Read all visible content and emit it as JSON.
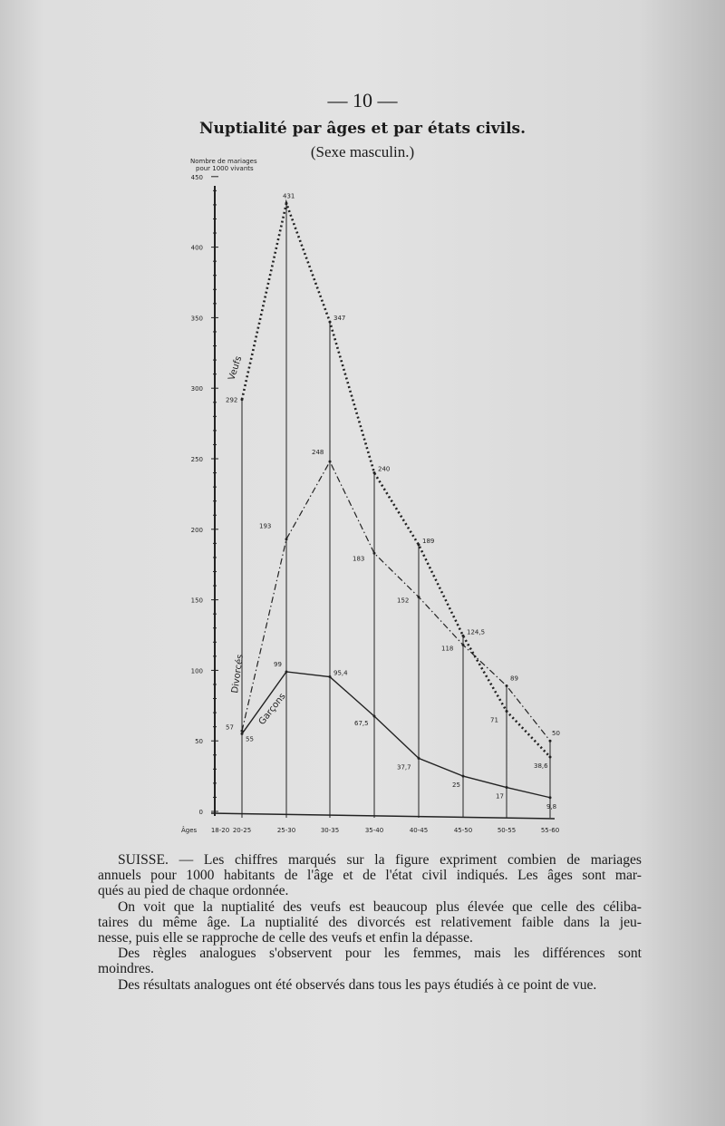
{
  "page_number": "— 10 —",
  "chart_data": {
    "type": "line",
    "title": "Nuptialité par âges et par états civils.",
    "subtitle": "(Sexe masculin.)",
    "ylabel": [
      "Nombre de mariages",
      "pour 1000 vivants"
    ],
    "xlabel": "Âges",
    "ylim": [
      0,
      450
    ],
    "yticks": [
      "0",
      "50",
      "100",
      "150",
      "200",
      "250",
      "300",
      "350",
      "400",
      "450"
    ],
    "categories": [
      "18-20",
      "20-25",
      "25-30",
      "30-35",
      "35-40",
      "40-45",
      "45-50",
      "50-55",
      "55-60"
    ],
    "grid": "vertical lines at each age group",
    "series": [
      {
        "name": "Veufs",
        "style": "dotted-plus / crosses",
        "values": [
          null,
          292,
          431,
          347,
          240,
          189,
          124.5,
          71,
          38.6
        ],
        "labels": [
          "",
          "292",
          "431",
          "347",
          "240",
          "189",
          "124,5",
          "71",
          "38,6"
        ]
      },
      {
        "name": "Divorcés",
        "style": "dash-dot",
        "values": [
          null,
          57,
          193,
          248,
          183,
          152,
          118,
          89,
          50
        ],
        "labels": [
          "",
          "57",
          "193",
          "248",
          "183",
          "152",
          "118",
          "89",
          "50"
        ]
      },
      {
        "name": "Garçons",
        "style": "solid",
        "values": [
          null,
          55,
          99,
          95.4,
          67.5,
          37.7,
          25,
          17,
          9.8
        ],
        "labels": [
          "",
          "55",
          "99",
          "95,4",
          "67,5",
          "37,7",
          "25",
          "17",
          "9,8"
        ]
      }
    ]
  },
  "caption": {
    "paragraphs": [
      [
        "SUISSE. — Les chiffres marqués sur la figure expriment combien de mariages",
        "annuels pour 1000 habitants de l'âge et de l'état civil indiqués. Les âges sont mar-",
        "qués au pied de chaque ordonnée."
      ],
      [
        "On voit que la nuptialité des veufs est beaucoup plus élevée que celle des céliba-",
        "taires du même âge. La nuptialité des divorcés est relativement faible dans la jeu-",
        "nesse, puis elle se rapproche de celle des veufs et enfin la dépasse."
      ],
      [
        "Des règles analogues s'observent pour les femmes, mais les différences sont",
        "moindres."
      ],
      [
        "Des résultats analogues ont été observés dans tous les pays étudiés à ce point de vue."
      ]
    ]
  }
}
